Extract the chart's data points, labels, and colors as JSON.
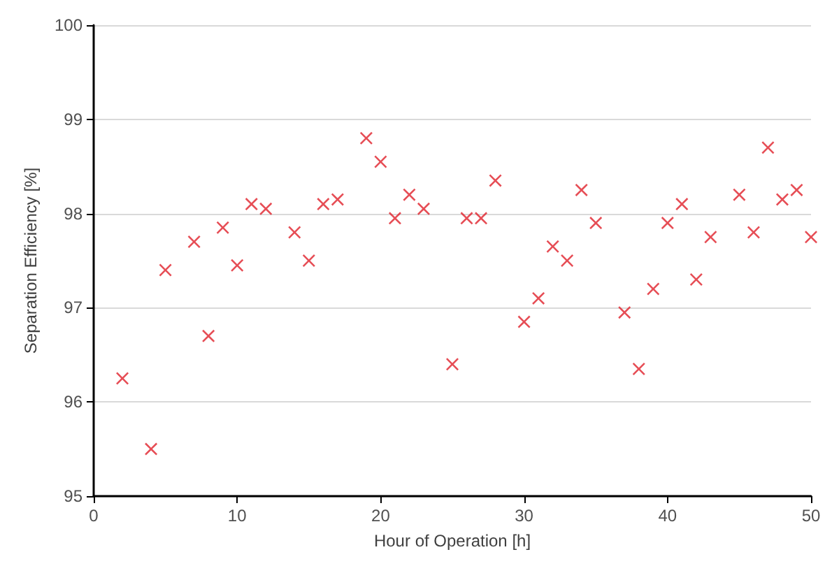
{
  "chart_data": {
    "type": "scatter",
    "xlabel": "Hour of Operation [h]",
    "ylabel": "Separation Efficiency [%]",
    "x": [
      2,
      4,
      5,
      7,
      8,
      9,
      10,
      11,
      12,
      14,
      15,
      16,
      17,
      19,
      20,
      21,
      22,
      23,
      25,
      26,
      27,
      28,
      30,
      31,
      32,
      33,
      34,
      35,
      37,
      38,
      39,
      40,
      41,
      42,
      43,
      45,
      46,
      47,
      48,
      49,
      50
    ],
    "series": [
      {
        "color": "#e0202a",
        "values": [
          96.25,
          95.5,
          97.4,
          97.7,
          96.7,
          97.85,
          97.45,
          98.1,
          98.05,
          97.8,
          97.5,
          98.1,
          98.15,
          98.8,
          98.55,
          97.95,
          98.2,
          98.05,
          96.4,
          97.95,
          97.95,
          98.35,
          96.85,
          97.1,
          97.65,
          97.5,
          98.25,
          97.9,
          96.95,
          96.35,
          97.2,
          97.9,
          98.1,
          97.3,
          97.75,
          98.2,
          97.8,
          98.7,
          98.15,
          98.25,
          97.75
        ]
      }
    ],
    "xlim": [
      0,
      50
    ],
    "xticks": [
      0,
      10,
      20,
      30,
      40,
      50
    ],
    "ylim": [
      95,
      100
    ],
    "yticks": [
      95,
      96,
      97,
      98,
      99,
      100
    ],
    "grid": "y",
    "marker": "cross"
  }
}
